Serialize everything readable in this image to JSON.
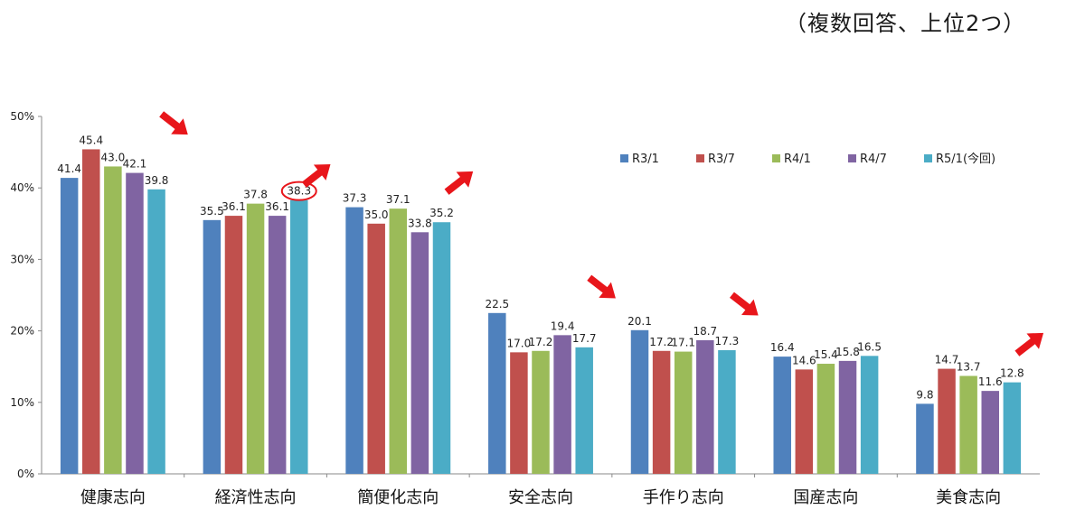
{
  "note": "（複数回答、上位2つ）",
  "chart_data": {
    "type": "bar",
    "categories": [
      "健康志向",
      "経済性志向",
      "簡便化志向",
      "安全志向",
      "手作り志向",
      "国産志向",
      "美食志向"
    ],
    "series": [
      {
        "name": "R3/1",
        "color": "#4f81bd",
        "values": [
          41.4,
          35.5,
          37.3,
          22.5,
          20.1,
          16.4,
          9.8
        ]
      },
      {
        "name": "R3/7",
        "color": "#c0504d",
        "values": [
          45.4,
          36.1,
          35.0,
          17.0,
          17.2,
          14.6,
          14.7
        ]
      },
      {
        "name": "R4/1",
        "color": "#9bbb59",
        "values": [
          43.0,
          37.8,
          37.1,
          17.2,
          17.1,
          15.4,
          13.7
        ]
      },
      {
        "name": "R4/7",
        "color": "#8064a2",
        "values": [
          42.1,
          36.1,
          33.8,
          19.4,
          18.7,
          15.8,
          11.6
        ]
      },
      {
        "name": "R5/1(今回)",
        "color": "#4bacc6",
        "values": [
          39.8,
          38.3,
          35.2,
          17.7,
          17.3,
          16.5,
          12.8
        ]
      }
    ],
    "ylim": [
      0,
      50
    ],
    "yticks": [
      "0%",
      "10%",
      "20%",
      "30%",
      "40%",
      "50%"
    ],
    "legend_position": "top-right",
    "grid": false,
    "annotations": {
      "trend_arrows": [
        "down",
        "up",
        "up",
        "down",
        "down",
        "none",
        "up"
      ],
      "arrow_color": "#e8161b",
      "circled_value": {
        "category": "経済性志向",
        "series": "R5/1(今回)"
      }
    }
  }
}
